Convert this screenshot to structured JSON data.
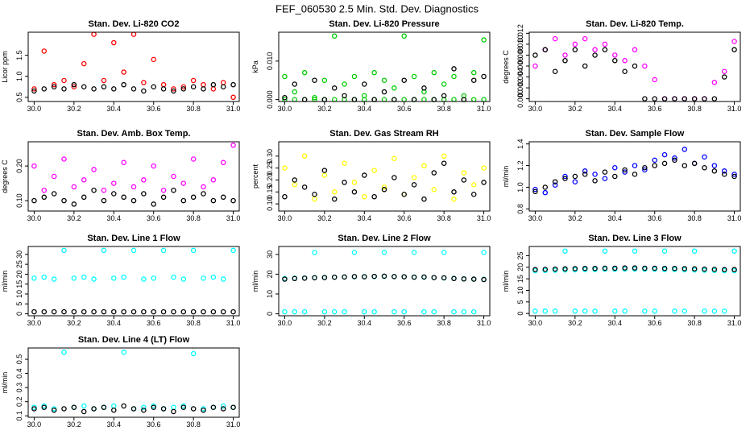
{
  "page_title": "FEF_060530  2.5 Min. Std. Dev. Diagnostics",
  "chart_data": [
    {
      "type": "scatter",
      "title": "Stan. Dev. Li-820 CO2",
      "ylabel": "Licor ppm",
      "x": [
        30,
        30.05,
        30.1,
        30.15,
        30.2,
        30.25,
        30.3,
        30.35,
        30.4,
        30.45,
        30.5,
        30.55,
        30.6,
        30.65,
        30.7,
        30.75,
        30.8,
        30.85,
        30.9,
        30.95,
        31
      ],
      "xlim": [
        29.97,
        31.03
      ],
      "xticks": [
        {
          "value": 30,
          "label": "30.0"
        },
        30.2,
        30.4,
        30.6,
        30.8,
        {
          "value": 31,
          "label": "31.0"
        }
      ],
      "ylim": [
        0.4,
        2.05
      ],
      "yticks": [
        0.5,
        {
          "value": 1,
          "label": "1.0"
        },
        1.5
      ],
      "series": [
        {
          "color": "#ff0000",
          "values": [
            0.7,
            1.6,
            0.8,
            0.9,
            0.75,
            1.3,
            2.0,
            0.9,
            1.8,
            1.1,
            2.0,
            0.85,
            1.4,
            0.8,
            0.7,
            0.75,
            0.9,
            0.8,
            0.7,
            0.85,
            0.5
          ]
        },
        {
          "color": "#000000",
          "values": [
            0.65,
            0.7,
            0.75,
            0.7,
            0.8,
            0.75,
            0.7,
            0.75,
            0.7,
            0.8,
            0.7,
            0.65,
            0.75,
            0.7,
            0.65,
            0.7,
            0.75,
            0.7,
            0.8,
            0.75,
            0.8
          ]
        }
      ]
    },
    {
      "type": "scatter",
      "title": "Stan. Dev. Li-820 Pressure",
      "ylabel": "kPa",
      "x": [
        30,
        30.05,
        30.1,
        30.15,
        30.2,
        30.25,
        30.3,
        30.35,
        30.4,
        30.45,
        30.5,
        30.55,
        30.6,
        30.65,
        30.7,
        30.75,
        30.8,
        30.85,
        30.9,
        30.95,
        31
      ],
      "xlim": [
        29.97,
        31.03
      ],
      "xticks": [
        {
          "value": 30,
          "label": "30.0"
        },
        30.2,
        30.4,
        30.6,
        30.8,
        {
          "value": 31,
          "label": "31.0"
        }
      ],
      "ylim": [
        -0.0005,
        0.0175
      ],
      "yticks": [
        {
          "value": 0,
          "label": "0.000"
        },
        {
          "value": 0.01,
          "label": "0.010"
        }
      ],
      "series": [
        {
          "color": "#00cc00",
          "values": [
            0.006,
            0.002,
            0.007,
            0.0005,
            0.005,
            0.0165,
            0.004,
            0.006,
            0.001,
            0.007,
            0.005,
            0.003,
            0.0165,
            0.006,
            0.002,
            0.007,
            0.004,
            0.006,
            0.001,
            0.007,
            0.0155
          ]
        },
        {
          "color": "#00cc00",
          "values": [
            0,
            0,
            0,
            0,
            0,
            0,
            0,
            0,
            0,
            0,
            0,
            0,
            0,
            0,
            0,
            0,
            0,
            0,
            0,
            0,
            0
          ]
        },
        {
          "color": "#000000",
          "values": [
            0.0005,
            0.004,
            0,
            0.005,
            0,
            0.003,
            0.001,
            0,
            0.004,
            0,
            0.002,
            0,
            0.005,
            0,
            0.003,
            0,
            0.001,
            0.008,
            0,
            0.005,
            0.006
          ]
        }
      ]
    },
    {
      "type": "scatter",
      "title": "Stan. Dev. Li-820 Temp.",
      "ylabel": "degrees C",
      "x": [
        30,
        30.05,
        30.1,
        30.15,
        30.2,
        30.25,
        30.3,
        30.35,
        30.4,
        30.45,
        30.5,
        30.55,
        30.6,
        30.65,
        30.7,
        30.75,
        30.8,
        30.85,
        30.9,
        30.95,
        31
      ],
      "xlim": [
        29.97,
        31.03
      ],
      "xticks": [
        {
          "value": 30,
          "label": "30.0"
        },
        30.2,
        30.4,
        30.6,
        30.8,
        {
          "value": 31,
          "label": "31.0"
        }
      ],
      "ylim": [
        -0.0005,
        0.0122
      ],
      "yticks": [
        {
          "value": 0,
          "label": "0.000"
        },
        0.002,
        0.004,
        0.006,
        0.008,
        {
          "value": 0.01,
          "label": "0.010"
        },
        0.012
      ],
      "series": [
        {
          "color": "#ff00ff",
          "values": [
            0.006,
            0.009,
            0.011,
            0.008,
            0.01,
            0.011,
            0.009,
            0.01,
            0.008,
            0.007,
            0.009,
            0.006,
            0.0035,
            0,
            0,
            0,
            0,
            0,
            0.003,
            0.005,
            0.0105
          ]
        },
        {
          "color": "#000000",
          "values": [
            0.008,
            0.009,
            0.005,
            0.007,
            0.009,
            0.006,
            0.008,
            0.009,
            0.007,
            0.005,
            0.006,
            0,
            0,
            0,
            0,
            0,
            0,
            0,
            0,
            0.004,
            0.009
          ]
        }
      ]
    },
    {
      "type": "scatter",
      "title": "Stan. Dev. Amb. Box Temp.",
      "ylabel": "degrees C",
      "x": [
        30,
        30.05,
        30.1,
        30.15,
        30.2,
        30.25,
        30.3,
        30.35,
        30.4,
        30.45,
        30.5,
        30.55,
        30.6,
        30.65,
        30.7,
        30.75,
        30.8,
        30.85,
        30.9,
        30.95,
        31
      ],
      "xlim": [
        29.97,
        31.03
      ],
      "xticks": [
        {
          "value": 30,
          "label": "30.0"
        },
        30.2,
        30.4,
        30.6,
        30.8,
        {
          "value": 31,
          "label": "31.0"
        }
      ],
      "ylim": [
        0.07,
        0.27
      ],
      "yticks": [
        {
          "value": 0.1,
          "label": "0.10"
        },
        {
          "value": 0.2,
          "label": "0.20"
        }
      ],
      "series": [
        {
          "color": "#ff00ff",
          "values": [
            0.2,
            0.13,
            0.17,
            0.22,
            0.14,
            0.16,
            0.19,
            0.13,
            0.15,
            0.21,
            0.14,
            0.16,
            0.2,
            0.13,
            0.17,
            0.15,
            0.22,
            0.14,
            0.16,
            0.21,
            0.26
          ]
        },
        {
          "color": "#000000",
          "values": [
            0.1,
            0.11,
            0.12,
            0.1,
            0.09,
            0.11,
            0.13,
            0.1,
            0.12,
            0.11,
            0.1,
            0.12,
            0.09,
            0.11,
            0.13,
            0.1,
            0.11,
            0.12,
            0.1,
            0.11,
            0.1
          ]
        }
      ]
    },
    {
      "type": "scatter",
      "title": "Stan. Dev. Gas Stream RH",
      "ylabel": "percent",
      "x": [
        30,
        30.05,
        30.1,
        30.15,
        30.2,
        30.25,
        30.3,
        30.35,
        30.4,
        30.45,
        30.5,
        30.55,
        30.6,
        30.65,
        30.7,
        30.75,
        30.8,
        30.85,
        30.9,
        30.95,
        31
      ],
      "xlim": [
        29.97,
        31.03
      ],
      "xticks": [
        {
          "value": 30,
          "label": "30.0"
        },
        30.2,
        30.4,
        30.6,
        30.8,
        {
          "value": 31,
          "label": "31.0"
        }
      ],
      "ylim": [
        0.07,
        0.36
      ],
      "yticks": [
        {
          "value": 0.1,
          "label": "0.10"
        },
        0.15,
        {
          "value": 0.2,
          "label": "0.20"
        },
        0.25,
        {
          "value": 0.3,
          "label": "0.30"
        }
      ],
      "series": [
        {
          "color": "#ffff00",
          "values": [
            0.25,
            0.18,
            0.3,
            0.12,
            0.22,
            0.15,
            0.27,
            0.19,
            0.13,
            0.24,
            0.17,
            0.29,
            0.14,
            0.21,
            0.26,
            0.16,
            0.3,
            0.12,
            0.23,
            0.18,
            0.25
          ]
        },
        {
          "color": "#000000",
          "values": [
            0.13,
            0.2,
            0.17,
            0.14,
            0.24,
            0.12,
            0.19,
            0.15,
            0.22,
            0.13,
            0.16,
            0.21,
            0.14,
            0.18,
            0.12,
            0.23,
            0.27,
            0.15,
            0.2,
            0.14,
            0.19
          ]
        }
      ]
    },
    {
      "type": "scatter",
      "title": "Stan. Dev. Sample Flow",
      "ylabel": "ml/min",
      "x": [
        30,
        30.05,
        30.1,
        30.15,
        30.2,
        30.25,
        30.3,
        30.35,
        30.4,
        30.45,
        30.5,
        30.55,
        30.6,
        30.65,
        30.7,
        30.75,
        30.8,
        30.85,
        30.9,
        30.95,
        31
      ],
      "xlim": [
        29.97,
        31.03
      ],
      "xticks": [
        {
          "value": 30,
          "label": "30.0"
        },
        30.2,
        30.4,
        30.6,
        30.8,
        {
          "value": 31,
          "label": "31.0"
        }
      ],
      "ylim": [
        0.78,
        1.42
      ],
      "yticks": [
        0.8,
        {
          "value": 1,
          "label": "1.0"
        },
        1.2,
        1.4
      ],
      "series": [
        {
          "color": "#0000ff",
          "values": [
            0.98,
            0.95,
            1.02,
            1.1,
            1.05,
            1.15,
            1.12,
            1.08,
            1.18,
            1.14,
            1.2,
            1.16,
            1.25,
            1.3,
            1.27,
            1.35,
            1.22,
            1.28,
            1.2,
            1.15,
            1.12
          ]
        },
        {
          "color": "#000000",
          "values": [
            0.96,
            1.0,
            1.05,
            1.08,
            1.1,
            1.12,
            1.06,
            1.14,
            1.1,
            1.16,
            1.12,
            1.18,
            1.2,
            1.22,
            1.25,
            1.2,
            1.22,
            1.18,
            1.15,
            1.12,
            1.1
          ]
        }
      ]
    },
    {
      "type": "scatter",
      "title": "Stan. Dev. Line 1 Flow",
      "ylabel": "ml/min",
      "x": [
        30,
        30.05,
        30.1,
        30.15,
        30.2,
        30.25,
        30.3,
        30.35,
        30.4,
        30.45,
        30.5,
        30.55,
        30.6,
        30.65,
        30.7,
        30.75,
        30.8,
        30.85,
        30.9,
        30.95,
        31
      ],
      "xlim": [
        29.97,
        31.03
      ],
      "xticks": [
        {
          "value": 30,
          "label": "30.0"
        },
        30.2,
        30.4,
        30.6,
        30.8,
        {
          "value": 31,
          "label": "31.0"
        }
      ],
      "ylim": [
        -1,
        34
      ],
      "yticks": [
        0,
        5,
        10,
        15,
        20,
        25,
        30
      ],
      "series": [
        {
          "color": "#00ffff",
          "values": [
            18,
            18.5,
            17.5,
            32,
            18,
            18.5,
            17.5,
            32,
            18,
            18.5,
            32,
            17.5,
            18,
            32,
            18.5,
            17.5,
            32,
            18,
            18.5,
            17.5,
            32
          ]
        },
        {
          "color": "#000000",
          "values": [
            1,
            1,
            1,
            1,
            1,
            1,
            1,
            1,
            1,
            1,
            1,
            1,
            1,
            1,
            1,
            1,
            1,
            1,
            1,
            1,
            1
          ]
        }
      ]
    },
    {
      "type": "scatter",
      "title": "Stan. Dev. Line 2 Flow",
      "ylabel": "ml/min",
      "x": [
        30,
        30.05,
        30.1,
        30.15,
        30.2,
        30.25,
        30.3,
        30.35,
        30.4,
        30.45,
        30.5,
        30.55,
        30.6,
        30.65,
        30.7,
        30.75,
        30.8,
        30.85,
        30.9,
        30.95,
        31
      ],
      "xlim": [
        29.97,
        31.03
      ],
      "xticks": [
        {
          "value": 30,
          "label": "30.0"
        },
        30.2,
        30.4,
        30.6,
        30.8,
        {
          "value": 31,
          "label": "31.0"
        }
      ],
      "ylim": [
        -1,
        34
      ],
      "yticks": [
        0,
        10,
        20,
        30
      ],
      "series": [
        {
          "color": "#00ffff",
          "values": [
            1,
            1,
            1,
            31,
            1,
            1,
            1,
            31,
            1,
            1,
            31,
            1,
            1,
            31,
            1,
            1,
            31,
            1,
            1,
            1,
            31
          ]
        },
        {
          "color": "#00ffff",
          "values": [
            17.8,
            18,
            18.1,
            18.3,
            18.4,
            18.5,
            18.6,
            18.7,
            18.8,
            18.8,
            18.9,
            18.8,
            18.7,
            18.6,
            18.5,
            18.3,
            18.1,
            17.9,
            17.7,
            17.5,
            17.4
          ]
        },
        {
          "color": "#000000",
          "values": [
            17.5,
            17.8,
            18,
            18.2,
            18.3,
            18.5,
            18.6,
            18.8,
            18.7,
            18.9,
            19,
            18.8,
            18.7,
            18.5,
            18.6,
            18.3,
            18.2,
            17.8,
            17.6,
            17.5,
            17.3
          ]
        }
      ]
    },
    {
      "type": "scatter",
      "title": "Stan. Dev. Line 3 Flow",
      "ylabel": "ml/min",
      "x": [
        30,
        30.05,
        30.1,
        30.15,
        30.2,
        30.25,
        30.3,
        30.35,
        30.4,
        30.45,
        30.5,
        30.55,
        30.6,
        30.65,
        30.7,
        30.75,
        30.8,
        30.85,
        30.9,
        30.95,
        31
      ],
      "xlim": [
        29.97,
        31.03
      ],
      "xticks": [
        {
          "value": 30,
          "label": "30.0"
        },
        30.2,
        30.4,
        30.6,
        30.8,
        {
          "value": 31,
          "label": "31.0"
        }
      ],
      "ylim": [
        -1,
        29
      ],
      "yticks": [
        0,
        5,
        10,
        15,
        20,
        25
      ],
      "series": [
        {
          "color": "#00ffff",
          "values": [
            1,
            1,
            1,
            27,
            1,
            1,
            1,
            27,
            1,
            1,
            27,
            1,
            1,
            27,
            1,
            1,
            27,
            1,
            1,
            1,
            27
          ]
        },
        {
          "color": "#00ffff",
          "values": [
            18.5,
            18.6,
            18.7,
            18.8,
            18.9,
            19,
            19,
            19.1,
            19.1,
            19.2,
            19.2,
            19.1,
            19.1,
            19,
            19,
            18.9,
            18.8,
            18.7,
            18.6,
            18.5,
            18.5
          ]
        },
        {
          "color": "#000000",
          "values": [
            19,
            19.1,
            19.2,
            19.3,
            19.4,
            19.5,
            19.5,
            19.6,
            19.6,
            19.7,
            19.7,
            19.6,
            19.6,
            19.5,
            19.5,
            19.4,
            19.3,
            19.2,
            19.1,
            19,
            19
          ]
        }
      ]
    },
    {
      "type": "scatter",
      "title": "Stan. Dev. Line 4 (LT) Flow",
      "ylabel": "ml/min",
      "x": [
        30,
        30.05,
        30.1,
        30.15,
        30.2,
        30.25,
        30.3,
        30.35,
        30.4,
        30.45,
        30.5,
        30.55,
        30.6,
        30.65,
        30.7,
        30.75,
        30.8,
        30.85,
        30.9,
        30.95,
        31
      ],
      "xlim": [
        29.97,
        31.03
      ],
      "xticks": [
        {
          "value": 30,
          "label": "30.0"
        },
        30.2,
        30.4,
        30.6,
        30.8,
        {
          "value": 31,
          "label": "31.0"
        }
      ],
      "ylim": [
        0.09,
        0.58
      ],
      "yticks": [
        0.1,
        0.2,
        0.3,
        0.4,
        0.5
      ],
      "series": [
        {
          "color": "#00ffff",
          "values": [
            0.16,
            0.17,
            0.15,
            0.55,
            0.16,
            0.17,
            0.15,
            0.16,
            0.17,
            0.55,
            0.15,
            0.16,
            0.17,
            0.15,
            0.16,
            0.17,
            0.54,
            0.15,
            0.16,
            0.17,
            0.16
          ]
        },
        {
          "color": "#000000",
          "values": [
            0.15,
            0.16,
            0.14,
            0.15,
            0.16,
            0.13,
            0.15,
            0.16,
            0.14,
            0.17,
            0.15,
            0.14,
            0.16,
            0.15,
            0.13,
            0.16,
            0.15,
            0.14,
            0.16,
            0.15,
            0.16
          ]
        }
      ]
    }
  ]
}
